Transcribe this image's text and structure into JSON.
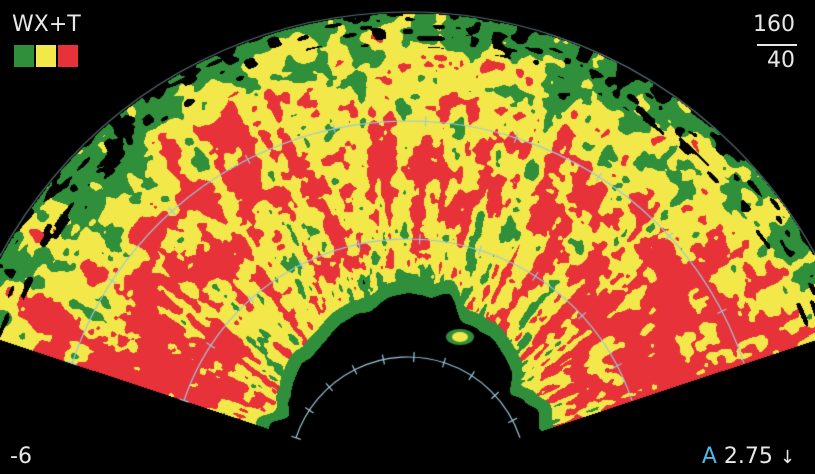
{
  "display": {
    "mode_label": "WX+T",
    "legend": {
      "colors": [
        "#2f8f3a",
        "#f2e84a",
        "#e8323a"
      ]
    },
    "range": {
      "top": "160",
      "bottom": "40"
    },
    "tilt_label": "-6",
    "antenna": {
      "letter": "A",
      "value": "2.75",
      "arrow": "↓"
    }
  },
  "colors": {
    "background": "#000000",
    "range_rings": "#9fc8d8",
    "green": "#2f8f3a",
    "yellow": "#f2e84a",
    "red": "#e8323a",
    "accent_blue": "#4fb8e8"
  }
}
